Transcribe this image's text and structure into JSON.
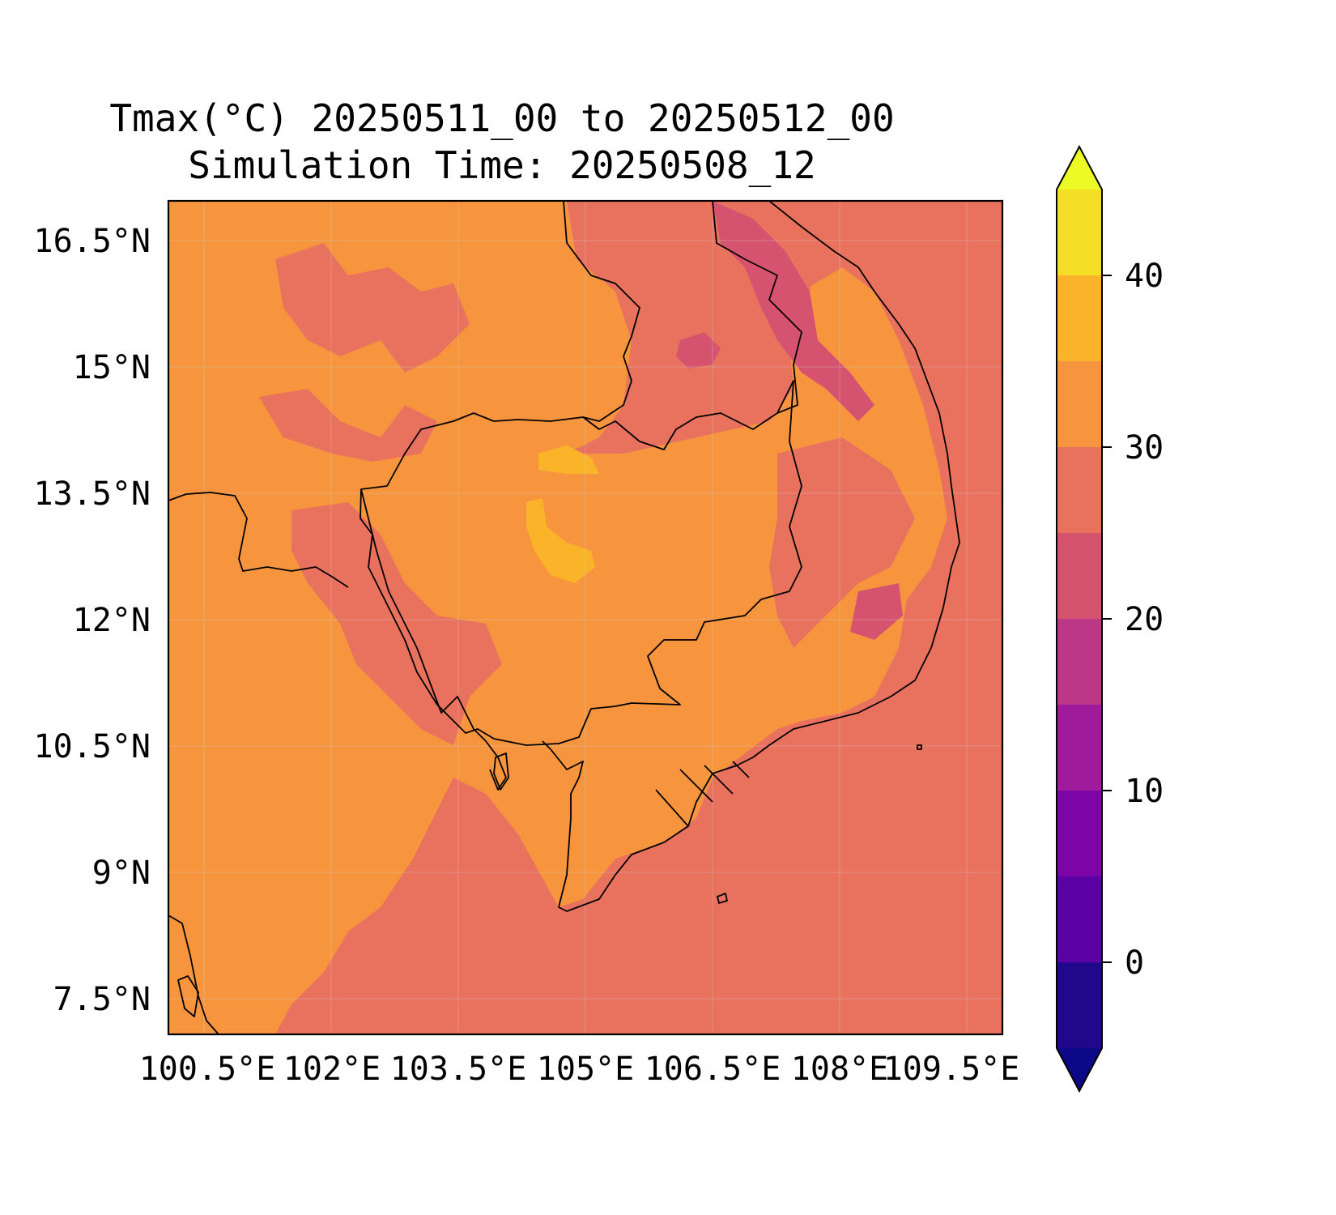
{
  "title": {
    "line1": "Tmax(°C) 20250511_00 to 20250512_00",
    "line2": "Simulation Time: 20250508_12"
  },
  "axes": {
    "x_ticks": [
      "100.5°E",
      "102°E",
      "103.5°E",
      "105°E",
      "106.5°E",
      "108°E",
      "109.5°E"
    ],
    "y_ticks": [
      "16.5°N",
      "15°N",
      "13.5°N",
      "12°N",
      "10.5°N",
      "9°N",
      "7.5°N"
    ]
  },
  "colorbar": {
    "ticks": [
      "40",
      "30",
      "20",
      "10",
      "0"
    ],
    "colors": [
      "#ecfb25",
      "#f4de25",
      "#fbb42a",
      "#f7953e",
      "#e8725e",
      "#d5536f",
      "#bc3887",
      "#a01a9c",
      "#7d04a7",
      "#5901a5",
      "#21078c",
      "#0d0887"
    ]
  },
  "chart_data": {
    "type": "map",
    "variable": "Tmax(°C)",
    "lon_ticks": [
      100.5,
      102,
      103.5,
      105,
      106.5,
      108,
      109.5
    ],
    "lat_ticks": [
      16.5,
      15,
      13.5,
      12,
      10.5,
      9,
      7.5
    ],
    "colorbar_levels": [
      -5,
      0,
      5,
      10,
      15,
      20,
      25,
      30,
      35,
      40,
      45
    ],
    "colorbar_tick_values": [
      40,
      30,
      20,
      10,
      0
    ],
    "extend": "both"
  }
}
